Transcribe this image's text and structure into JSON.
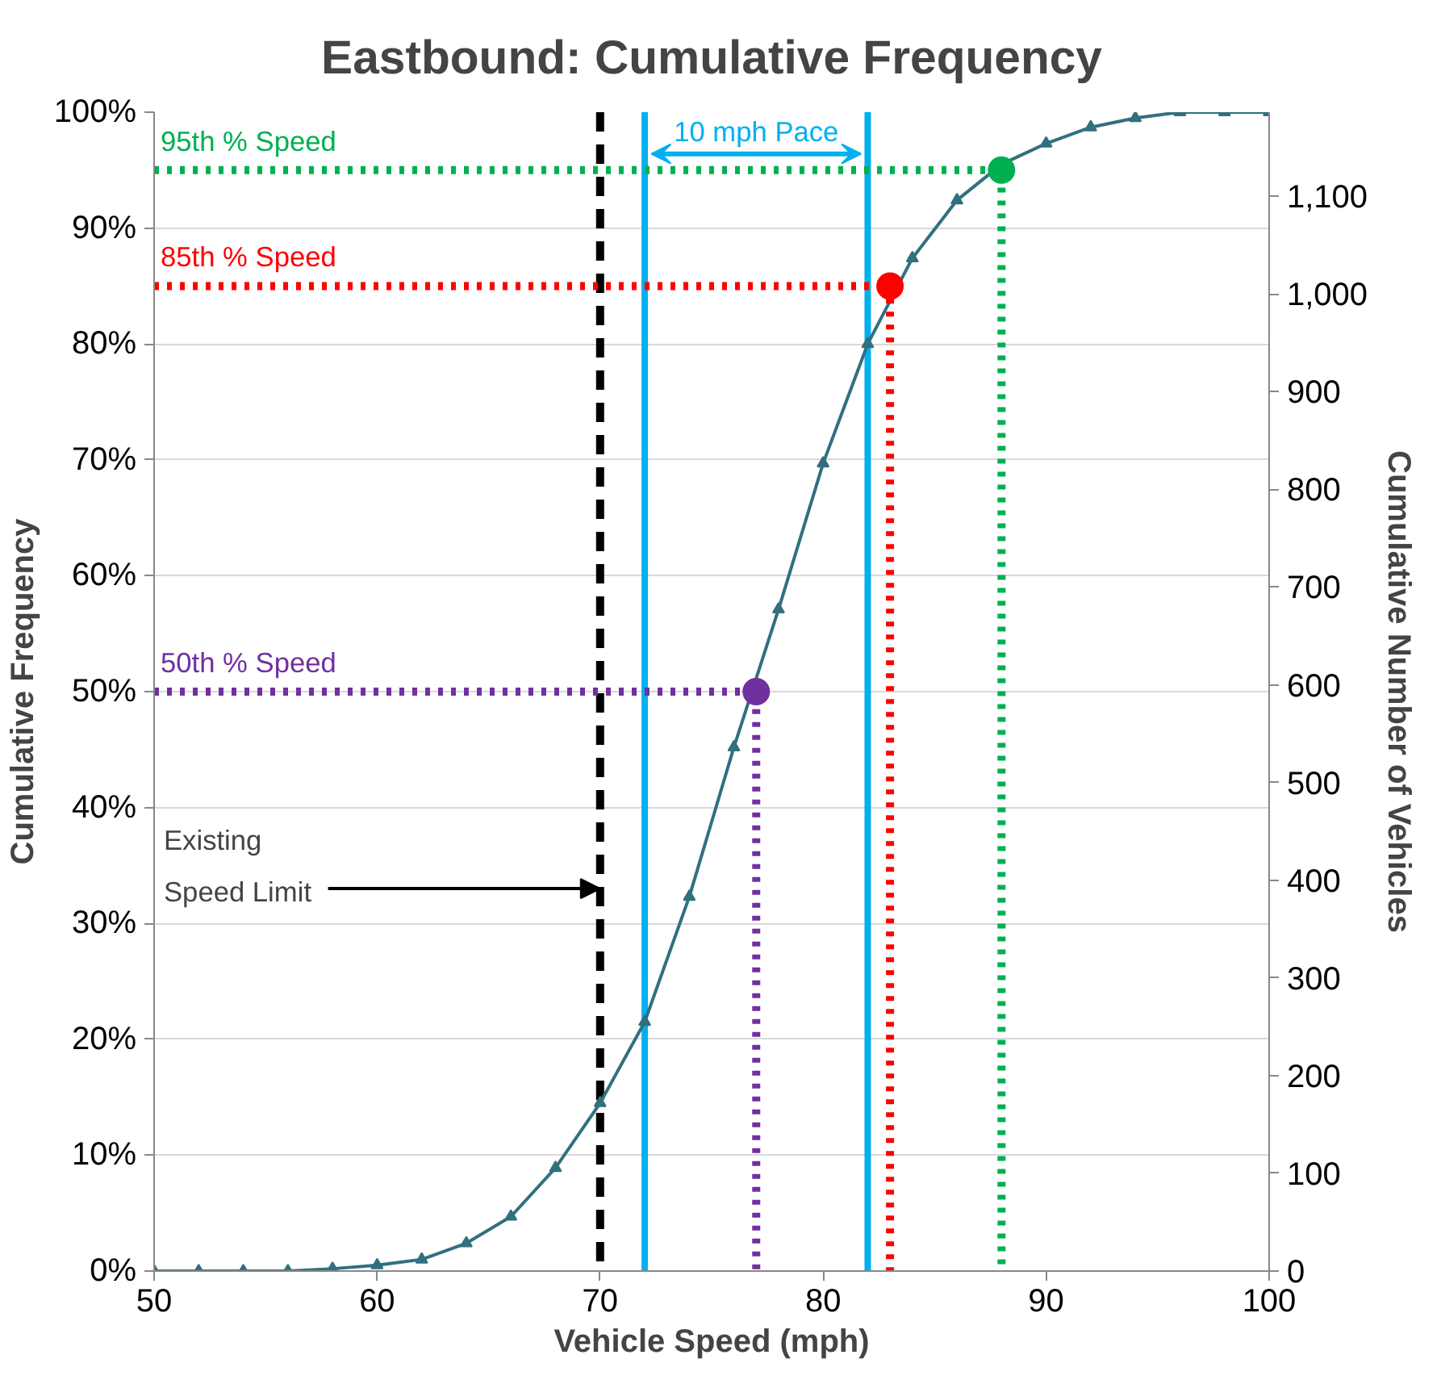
{
  "chart_data": {
    "type": "line",
    "title": "Eastbound: Cumulative Frequency",
    "xlabel": "Vehicle Speed (mph)",
    "ylabel": "Cumulative Frequency",
    "y2label": "Cumulative Number of Vehicles",
    "x": [
      50,
      52,
      54,
      56,
      58,
      60,
      62,
      64,
      66,
      68,
      70,
      72,
      74,
      76,
      78,
      80,
      82,
      84,
      86,
      88,
      90,
      92,
      94,
      96,
      98,
      100
    ],
    "series": [
      {
        "color": "#31707f",
        "values": [
          0,
          0,
          0,
          0,
          0.2,
          0.5,
          1.0,
          2.4,
          4.7,
          8.9,
          14.5,
          21.5,
          32.3,
          45.2,
          57.1,
          69.7,
          80,
          87.4,
          92.4,
          95.5,
          97.3,
          98.7,
          99.5,
          100,
          100,
          100
        ]
      },
      {
        "name": "50th % Speed",
        "type": "line",
        "line_style": "dotted",
        "color": "#7030a0",
        "marker": "none",
        "x": [
          50,
          77,
          77
        ],
        "values": [
          50,
          50,
          0
        ]
      },
      {
        "type": "scatter",
        "color": "#7030a0",
        "marker": "circle",
        "x": [
          77
        ],
        "values": [
          50
        ]
      },
      {
        "name": "85th % Speed",
        "type": "line",
        "line_style": "dotted",
        "color": "#ff0000",
        "marker": "none",
        "x": [
          50,
          83,
          83
        ],
        "values": [
          85,
          85,
          0
        ]
      },
      {
        "type": "scatter",
        "color": "#ff0000",
        "marker": "circle",
        "x": [
          83
        ],
        "values": [
          85
        ]
      },
      {
        "name": "95th % Speed",
        "type": "line",
        "line_style": "dotted",
        "color": "#00b050",
        "marker": "none",
        "x": [
          50,
          88,
          88
        ],
        "values": [
          95,
          95,
          0
        ]
      },
      {
        "type": "scatter",
        "color": "#00b050",
        "marker": "circle",
        "x": [
          88
        ],
        "values": [
          95
        ]
      }
    ],
    "ref_lines": [
      {
        "axis": "x",
        "value": 70,
        "color": "#000000",
        "line_style": "dashed"
      },
      {
        "axis": "x",
        "value": 72,
        "color": "#00b0f0",
        "line_style": "solid"
      },
      {
        "axis": "x",
        "value": 82,
        "color": "#00b0f0",
        "line_style": "solid"
      }
    ],
    "annotations": [
      {
        "text": "Existing\nSpeed Limit",
        "x": 70,
        "y": 33
      },
      "10 mph Pace"
    ],
    "xlim": [
      50,
      100
    ],
    "xticks": [
      50,
      60,
      70,
      80,
      90,
      100
    ],
    "ylim": [
      0,
      100
    ],
    "yticks": [
      {
        "value": 0,
        "label": "0%"
      },
      {
        "value": 10,
        "label": "10%"
      },
      {
        "value": 20,
        "label": "20%"
      },
      {
        "value": 30,
        "label": "30%"
      },
      {
        "value": 40,
        "label": "40%"
      },
      {
        "value": 50,
        "label": "50%"
      },
      {
        "value": 60,
        "label": "60%"
      },
      {
        "value": 70,
        "label": "70%"
      },
      {
        "value": 80,
        "label": "80%"
      },
      {
        "value": 90,
        "label": "90%"
      },
      {
        "value": 100,
        "label": "100%"
      }
    ],
    "y2lim": [
      0,
      1186
    ],
    "y2ticks": [
      0,
      100,
      200,
      300,
      400,
      500,
      600,
      700,
      800,
      900,
      {
        "value": 1000,
        "label": "1,000"
      },
      {
        "value": 1100,
        "label": "1,100"
      }
    ],
    "grid": "y",
    "marker": "triangle",
    "line_style": "solid"
  }
}
